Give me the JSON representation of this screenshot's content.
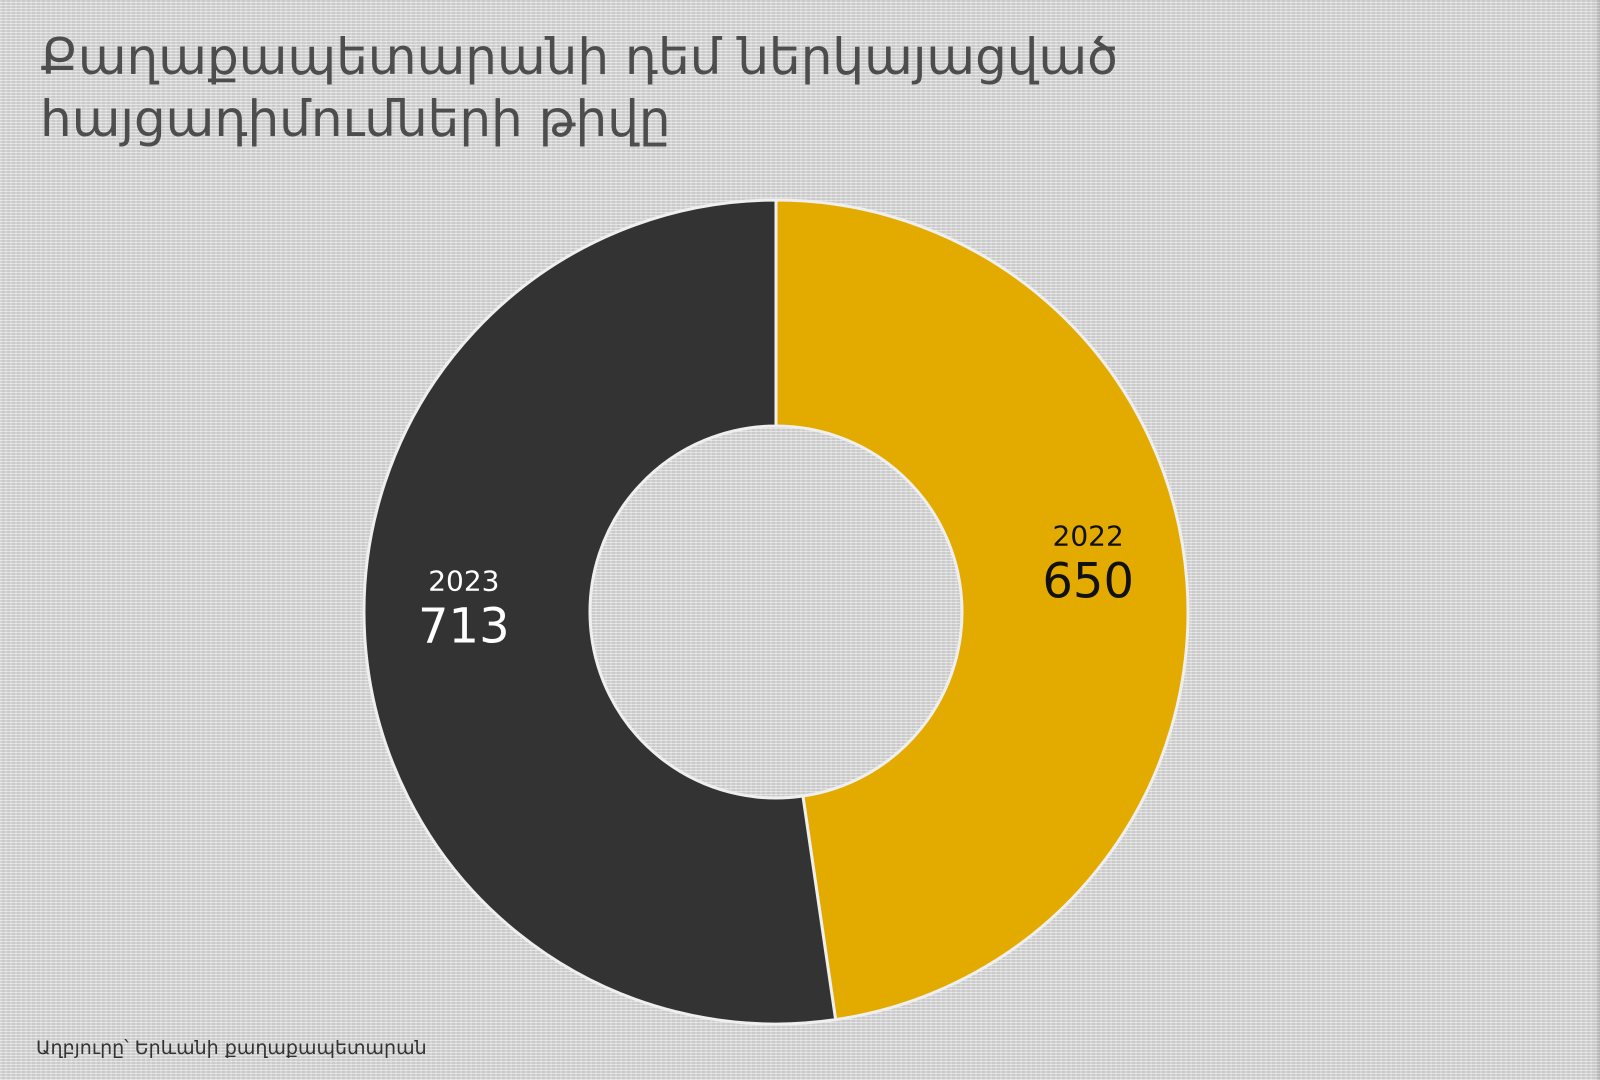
{
  "header": {
    "title_line1": "Քաղաքապետարանի դեմ ներկայացված",
    "title_line2": "հայցադիմումների թիվը"
  },
  "footer": {
    "source": "Աղբյուրը՝ Երևանի քաղաքապետարան"
  },
  "colors": {
    "slice_2022": "#e3ab00",
    "slice_2023": "#333333",
    "label_2022": "#111111",
    "label_2023": "#ffffff"
  },
  "chart_data": {
    "type": "pie",
    "variant": "donut",
    "title": "Քաղաքապետարանի դեմ ներկայացված հայցադիմումների թիվը",
    "start_angle_deg": 0,
    "direction": "clockwise",
    "slices": [
      {
        "label": "2022",
        "value": 650,
        "value_label": "650",
        "color": "#e3ab00",
        "text_color": "#111111"
      },
      {
        "label": "2023",
        "value": 713,
        "value_label": "713",
        "color": "#333333",
        "text_color": "#ffffff"
      }
    ],
    "legend": "none"
  }
}
